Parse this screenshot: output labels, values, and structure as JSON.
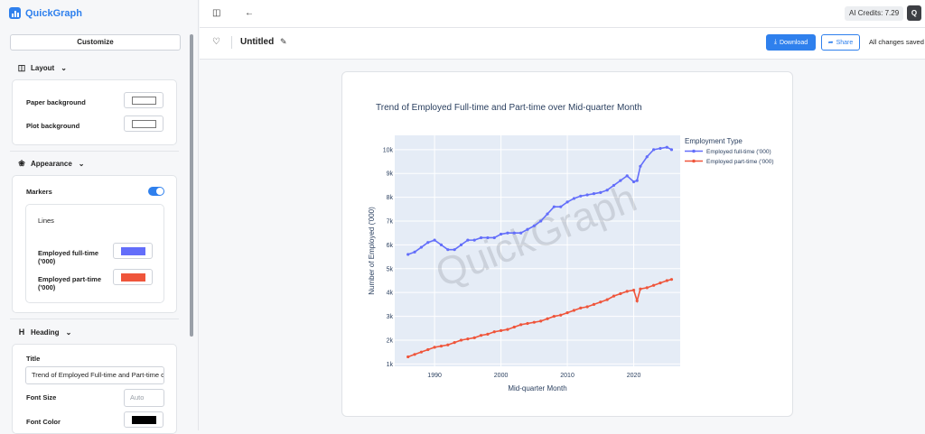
{
  "app": {
    "name": "QuickGraph",
    "credits": "AI Credits: 7.29",
    "user_initial": "Q"
  },
  "sidebar": {
    "customize_label": "Customize",
    "layout": {
      "header": "Layout",
      "paper_bg_label": "Paper background",
      "plot_bg_label": "Plot background",
      "paper_bg_color": "#ffffff",
      "plot_bg_color": "#ffffff"
    },
    "appearance": {
      "header": "Appearance",
      "markers_label": "Markers",
      "markers_on": true,
      "lines_label": "Lines",
      "series": [
        {
          "label": "Employed full-time ('000)",
          "color": "#636efa"
        },
        {
          "label": "Employed part-time ('000)",
          "color": "#ef553b"
        }
      ]
    },
    "heading": {
      "header": "Heading",
      "title_label": "Title",
      "title_value": "Trend of Employed Full-time and Part-time over Mid-quarter Month",
      "font_size_label": "Font Size",
      "font_size_placeholder": "Auto",
      "font_color_label": "Font Color",
      "font_color_value": "#000000"
    }
  },
  "toolbar": {
    "doc_title": "Untitled",
    "download_label": "Download",
    "share_label": "Share",
    "saved_status": "All changes saved"
  },
  "chart_data": {
    "type": "line",
    "title": "Trend of Employed Full-time and Part-time over Mid-quarter Month",
    "xlabel": "Mid-quarter Month",
    "ylabel": "Number of Employed ('000)",
    "xlim": [
      1984,
      2027
    ],
    "ylim": [
      900,
      10600
    ],
    "x_ticks": [
      1990,
      2000,
      2010,
      2020
    ],
    "y_ticks": [
      1000,
      2000,
      3000,
      4000,
      5000,
      6000,
      7000,
      8000,
      9000,
      10000
    ],
    "y_tick_labels": [
      "1k",
      "2k",
      "3k",
      "4k",
      "5k",
      "6k",
      "7k",
      "8k",
      "9k",
      "10k"
    ],
    "legend_title": "Employment Type",
    "legend_position": "right",
    "grid": true,
    "watermark": "QuickGraph",
    "series": [
      {
        "name": "Employed full-time ('000)",
        "color": "#636efa",
        "x": [
          1986,
          1987,
          1988,
          1989,
          1990,
          1991,
          1992,
          1993,
          1994,
          1995,
          1996,
          1997,
          1998,
          1999,
          2000,
          2001,
          2002,
          2003,
          2004,
          2005,
          2006,
          2007,
          2008,
          2009,
          2010,
          2011,
          2012,
          2013,
          2014,
          2015,
          2016,
          2017,
          2018,
          2019,
          2020,
          2020.5,
          2021,
          2022,
          2023,
          2024,
          2025,
          2025.7
        ],
        "y": [
          5600,
          5700,
          5900,
          6100,
          6200,
          6000,
          5800,
          5800,
          6000,
          6200,
          6200,
          6300,
          6300,
          6300,
          6450,
          6500,
          6500,
          6500,
          6650,
          6800,
          7000,
          7300,
          7600,
          7600,
          7800,
          7950,
          8050,
          8100,
          8150,
          8200,
          8300,
          8500,
          8700,
          8900,
          8650,
          8700,
          9300,
          9700,
          10000,
          10050,
          10100,
          10000
        ]
      },
      {
        "name": "Employed part-time ('000)",
        "color": "#ef553b",
        "x": [
          1986,
          1987,
          1988,
          1989,
          1990,
          1991,
          1992,
          1993,
          1994,
          1995,
          1996,
          1997,
          1998,
          1999,
          2000,
          2001,
          2002,
          2003,
          2004,
          2005,
          2006,
          2007,
          2008,
          2009,
          2010,
          2011,
          2012,
          2013,
          2014,
          2015,
          2016,
          2017,
          2018,
          2019,
          2020,
          2020.5,
          2021,
          2022,
          2023,
          2024,
          2025,
          2025.7
        ],
        "y": [
          1300,
          1400,
          1500,
          1600,
          1700,
          1750,
          1800,
          1900,
          2000,
          2050,
          2100,
          2200,
          2250,
          2350,
          2400,
          2450,
          2550,
          2650,
          2700,
          2750,
          2800,
          2900,
          3000,
          3050,
          3150,
          3250,
          3350,
          3400,
          3500,
          3600,
          3700,
          3850,
          3950,
          4050,
          4100,
          3650,
          4150,
          4200,
          4300,
          4400,
          4500,
          4550
        ]
      }
    ]
  }
}
